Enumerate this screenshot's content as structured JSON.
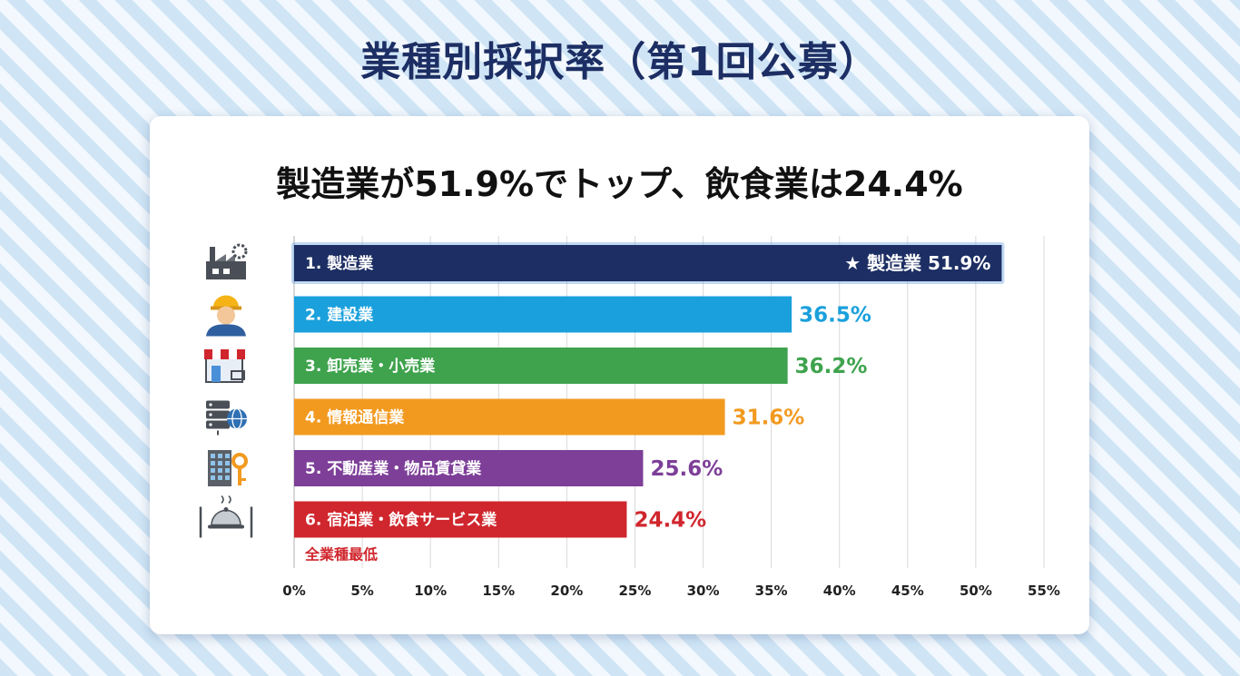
{
  "title": "業種別採択率（第1回公募）",
  "subtitle": "製造業が51.9%でトップ、飲食業は24.4%",
  "chart_data": {
    "type": "bar",
    "orientation": "horizontal",
    "categories": [
      "1. 製造業",
      "2. 建設業",
      "3. 卸売業・小売業",
      "4. 情報通信業",
      "5. 不動産業・物品賃貸業",
      "6. 宿泊業・飲食サービス業"
    ],
    "values": [
      51.9,
      36.5,
      36.2,
      31.6,
      25.6,
      24.4
    ],
    "value_labels": [
      "51.9%",
      "36.5%",
      "36.2%",
      "31.6%",
      "25.6%",
      "24.4%"
    ],
    "colors": [
      "#1c2e63",
      "#1aa0dc",
      "#3fa34d",
      "#f29a20",
      "#7d3f98",
      "#d0262d"
    ],
    "icons": [
      "factory-icon",
      "construction-worker-icon",
      "store-icon",
      "server-globe-icon",
      "building-key-icon",
      "dining-cloche-icon"
    ],
    "xlim": [
      0,
      55
    ],
    "xticks": [
      "0%",
      "5%",
      "10%",
      "15%",
      "20%",
      "25%",
      "30%",
      "35%",
      "40%",
      "45%",
      "50%",
      "55%"
    ],
    "grid": true,
    "annotations": {
      "top_label": "★ 製造業 51.9%",
      "lowest_note": "全業種最低"
    }
  }
}
